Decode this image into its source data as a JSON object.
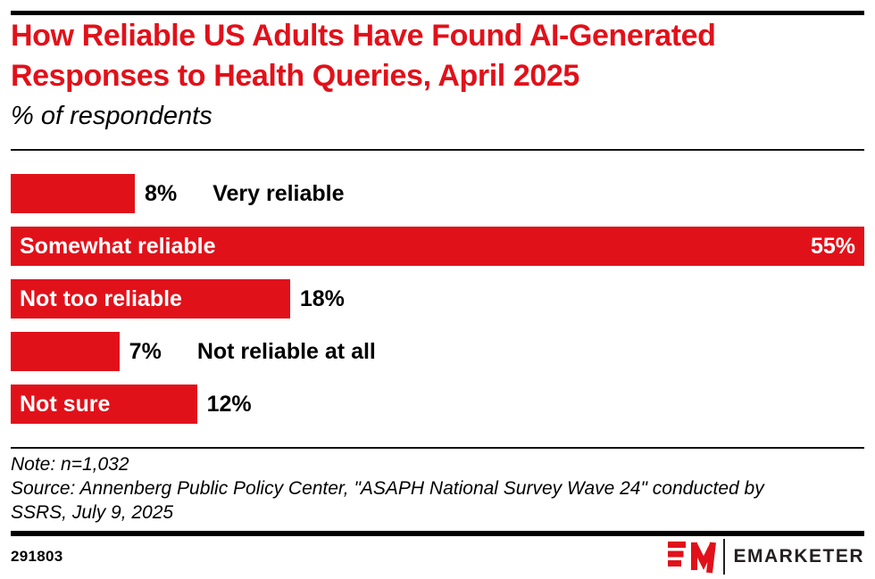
{
  "header": {
    "title": "How Reliable US Adults Have Found AI-Generated Responses to Health Queries, April 2025",
    "subtitle": "% of respondents"
  },
  "chart_data": {
    "type": "bar",
    "orientation": "horizontal",
    "unit": "%",
    "title": "How Reliable US Adults Have Found AI-Generated Responses to Health Queries, April 2025",
    "subtitle": "% of respondents",
    "categories": [
      "Very reliable",
      "Somewhat reliable",
      "Not too reliable",
      "Not reliable at all",
      "Not sure"
    ],
    "values": [
      8,
      55,
      18,
      7,
      12
    ],
    "xmax_scale_value": 55,
    "bar_color": "#e1111a",
    "grid": "off",
    "legend": "none",
    "bars": [
      {
        "label": "Very reliable",
        "value": 8,
        "value_label": "8%",
        "layout": "outside"
      },
      {
        "label": "Somewhat reliable",
        "value": 55,
        "value_label": "55%",
        "layout": "inside-both"
      },
      {
        "label": "Not too reliable",
        "value": 18,
        "value_label": "18%",
        "layout": "inside-label"
      },
      {
        "label": "Not reliable at all",
        "value": 7,
        "value_label": "7%",
        "layout": "outside"
      },
      {
        "label": "Not sure",
        "value": 12,
        "value_label": "12%",
        "layout": "inside-label"
      }
    ]
  },
  "footnote": {
    "note": "Note: n=1,032",
    "source": "Source: Annenberg Public Policy Center, \"ASAPH National Survey Wave 24\" conducted by SSRS, July 9, 2025"
  },
  "footer": {
    "chart_id": "291803",
    "brand": "EMARKETER"
  },
  "colors": {
    "accent_red": "#e1111a",
    "ink": "#000000",
    "background": "#ffffff"
  }
}
